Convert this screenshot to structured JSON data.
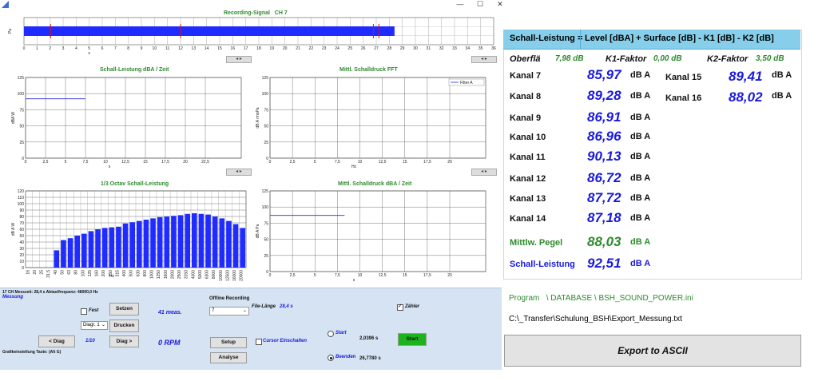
{
  "window": {
    "minimize": "—",
    "maximize": "☐",
    "close": "✕"
  },
  "signal": {
    "title": "Recording-Signal",
    "channel": "CH 7",
    "y_label": "Pa",
    "x_ticks": [
      "0",
      "1",
      "2",
      "3",
      "4",
      "5",
      "6",
      "7",
      "8",
      "9",
      "10",
      "11",
      "12",
      "13",
      "14",
      "15",
      "16",
      "17",
      "18",
      "19",
      "20",
      "21",
      "22",
      "23",
      "24",
      "25",
      "26",
      "27",
      "28",
      "29",
      "30",
      "31",
      "32",
      "33",
      "34",
      "35",
      "36"
    ],
    "x_unit": "s"
  },
  "plots": {
    "dba_time": {
      "title": "Schall-Leistung dBA / Zeit",
      "y_label": "dBA W",
      "x_unit": "s",
      "y_ticks": [
        "125",
        "100",
        "75",
        "50",
        "25",
        "0"
      ],
      "x_ticks": [
        "0",
        "2,5",
        "5",
        "7,5",
        "10",
        "12,5",
        "15",
        "17,5",
        "20",
        "22,5"
      ]
    },
    "fft": {
      "title": "Mittl. Schalldruck FFT",
      "y_label": "dB A rmsPa",
      "x_unit": "Hz",
      "legend": "Filter A",
      "y_ticks": [
        "125",
        "100",
        "75",
        "50",
        "25",
        "0"
      ],
      "x_ticks": [
        "0",
        "2,5",
        "5",
        "7,5",
        "10",
        "12,5",
        "15",
        "17,5",
        "20"
      ]
    },
    "octave": {
      "title": "1/3 Octav Schall-Leistung",
      "y_label": "dB A W",
      "x_unit": "Hz",
      "y_ticks": [
        "120",
        "110",
        "100",
        "90",
        "80",
        "70",
        "60",
        "50",
        "40",
        "30",
        "20",
        "10",
        "0"
      ],
      "categories": [
        "16",
        "20",
        "25",
        "31,5",
        "40",
        "50",
        "63",
        "80",
        "100",
        "125",
        "160",
        "200",
        "250",
        "315",
        "400",
        "500",
        "630",
        "800",
        "1000",
        "1250",
        "1600",
        "2000",
        "2500",
        "3150",
        "4000",
        "5000",
        "6300",
        "8000",
        "10000",
        "12500",
        "16000",
        "20000"
      ],
      "values": [
        0,
        0,
        0,
        0,
        27,
        43,
        46,
        50,
        53,
        57,
        60,
        62,
        63,
        64,
        69,
        71,
        73,
        75,
        77,
        79,
        80,
        81,
        82,
        84,
        85,
        84,
        83,
        80,
        77,
        73,
        68,
        62
      ]
    },
    "dba_pressure": {
      "title": "Mittl. Schalldruck dBA / Zeit",
      "y_label": "dB A Pa",
      "x_unit": "s",
      "y_ticks": [
        "125",
        "100",
        "75",
        "50",
        "25",
        "0"
      ],
      "x_ticks": [
        "0",
        "2,5",
        "5",
        "7,5",
        "10",
        "12,5",
        "15",
        "17,5",
        "20"
      ]
    }
  },
  "results": {
    "header_left": "Schall-Leistung   =",
    "header_right": "Level [dBA] + Surface [dB] - K1 [dB] - K2 [dB]",
    "oberfl_label": "Oberflä",
    "oberfl_value": "7,98 dB",
    "k1_label": "K1-Faktor",
    "k1_value": "0,00 dB",
    "k2_label": "K2-Faktor",
    "k2_value": "3,50 dB",
    "unit": "dB A",
    "channels": [
      {
        "label": "Kanal 7",
        "value": "85,97"
      },
      {
        "label": "Kanal 8",
        "value": "89,28"
      },
      {
        "label": "Kanal 9",
        "value": "86,91"
      },
      {
        "label": "Kanal 10",
        "value": "86,96"
      },
      {
        "label": "Kanal 11",
        "value": "90,13"
      },
      {
        "label": "Kanal 12",
        "value": "86,72"
      },
      {
        "label": "Kanal 13",
        "value": "87,72"
      },
      {
        "label": "Kanal 14",
        "value": "87,18"
      },
      {
        "label": "Kanal 15",
        "value": "89,41"
      },
      {
        "label": "Kanal 16",
        "value": "88,02"
      }
    ],
    "mittlw_label": "Mittlw. Pegel",
    "mittlw_value": "88,03",
    "schall_label": "Schall-Leistung",
    "schall_value": "92,51"
  },
  "program": {
    "label": "Program",
    "path": "\\ DATABASE \\ BSH_SOUND_POWER.ini",
    "export_path": "C:\\_Transfer\\Schulung_BSH\\Export_Messung.txt",
    "export_button": "Export to ASCII"
  },
  "controls": {
    "info": "17 CH Messzeit: 28,4 s Abtastfrequenz: 48000,0 Hz",
    "messung": "Messung",
    "fest": "Fest",
    "setzen": "Setzen",
    "diagr_select": "Diagr. 1",
    "drucken": "Drucken",
    "meas": "41 meas.",
    "diag_prev": "< Diag",
    "diag_count": "1/10",
    "diag_next": "Diag >",
    "rpm": "0 RPM",
    "grafik": "Grafikeinstellung Taste: (Alt G)",
    "offline": "Offline Recording",
    "offline_select": "7",
    "file_laenge_label": "File-Länge",
    "file_laenge_value": "28,4 s",
    "setup": "Setup",
    "analyse": "Analyse",
    "cursor": "Cursor Einschalten",
    "start_label": "Start",
    "start_value": "2,0396 s",
    "beenden_label": "Beenden",
    "beenden_value": "26,7780 s",
    "start_button": "Start",
    "zaehler": "Zähler"
  },
  "colors": {
    "signal": "#1f2bff",
    "marker": "#e01010",
    "series": "#2a2ad6",
    "bar": "#1f2bff",
    "accent_header": "#87ceeb",
    "green": "#2e8b2e"
  }
}
